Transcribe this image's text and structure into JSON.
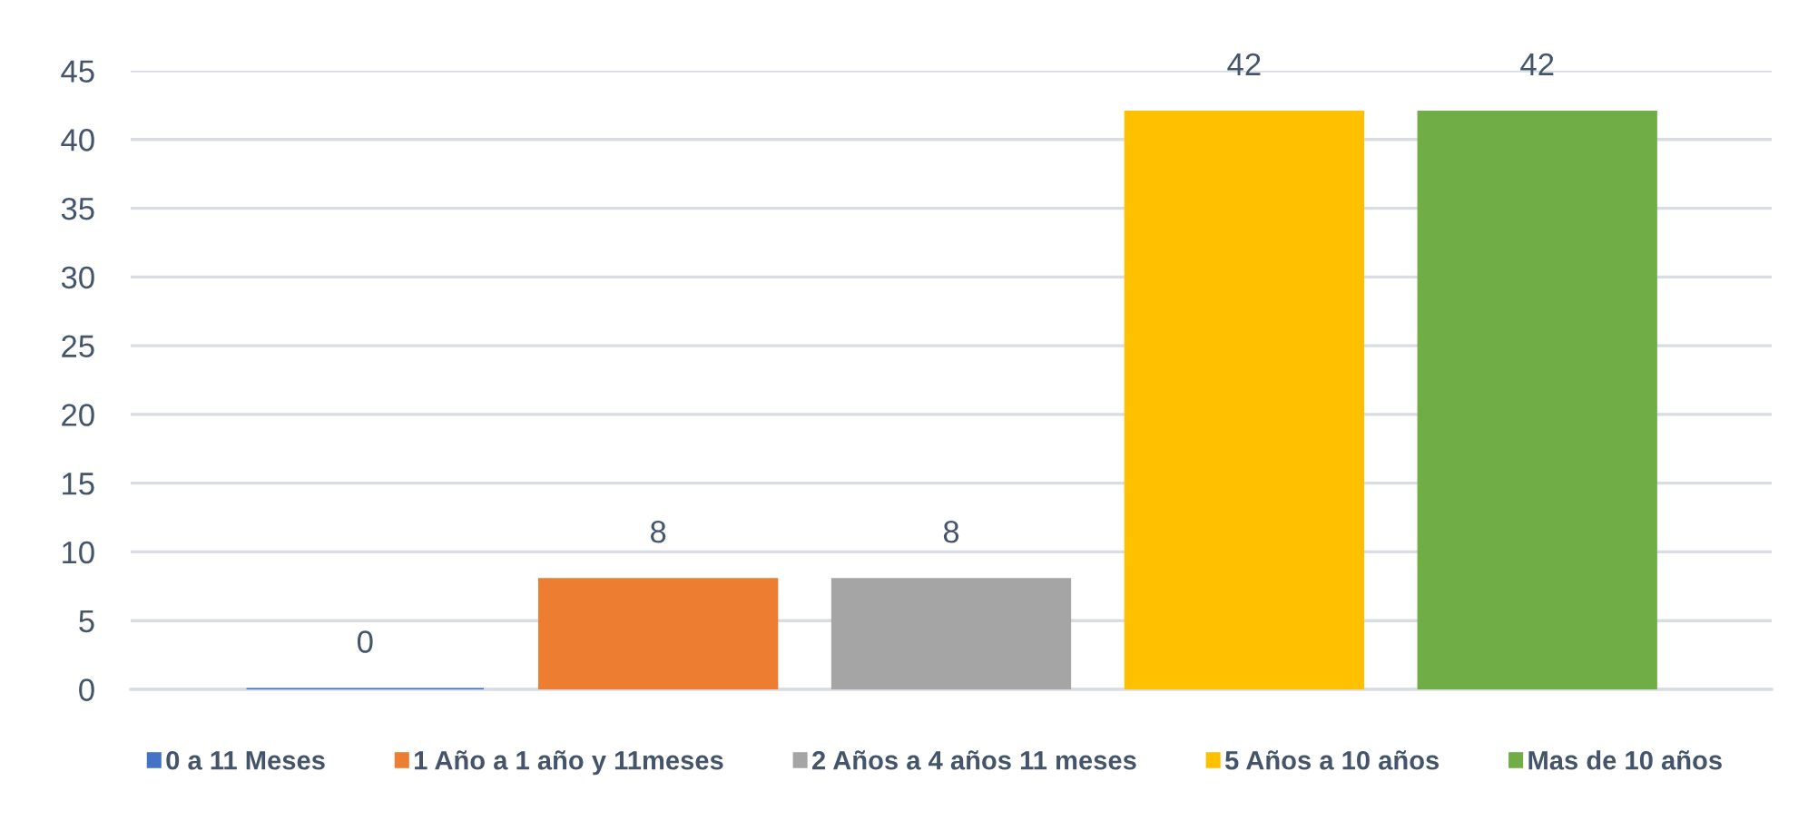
{
  "chart_data": {
    "type": "bar",
    "stacked": true,
    "categories": [
      null,
      null,
      null,
      null,
      null
    ],
    "series": [
      {
        "name": "0 a 11 Meses",
        "color": "#4472c4",
        "values": [
          0,
          null,
          null,
          null,
          null
        ]
      },
      {
        "name": "1 Año a 1 año y 11meses",
        "color": "#ed7d31",
        "values": [
          null,
          8,
          null,
          null,
          null
        ]
      },
      {
        "name": "2 Años a 4 años 11 meses",
        "color": "#a5a5a5",
        "values": [
          null,
          null,
          8,
          null,
          null
        ]
      },
      {
        "name": "5 Años a 10 años",
        "color": "#ffc000",
        "values": [
          null,
          null,
          null,
          42,
          null
        ]
      },
      {
        "name": "Mas de 10 años",
        "color": "#70ad47",
        "values": [
          null,
          null,
          null,
          null,
          42
        ]
      }
    ],
    "ylim": [
      0,
      45
    ],
    "yticks": [
      0,
      5,
      10,
      15,
      20,
      25,
      30,
      35,
      40,
      45
    ],
    "grid": "y",
    "legend": "bottom",
    "data_labels": true
  }
}
